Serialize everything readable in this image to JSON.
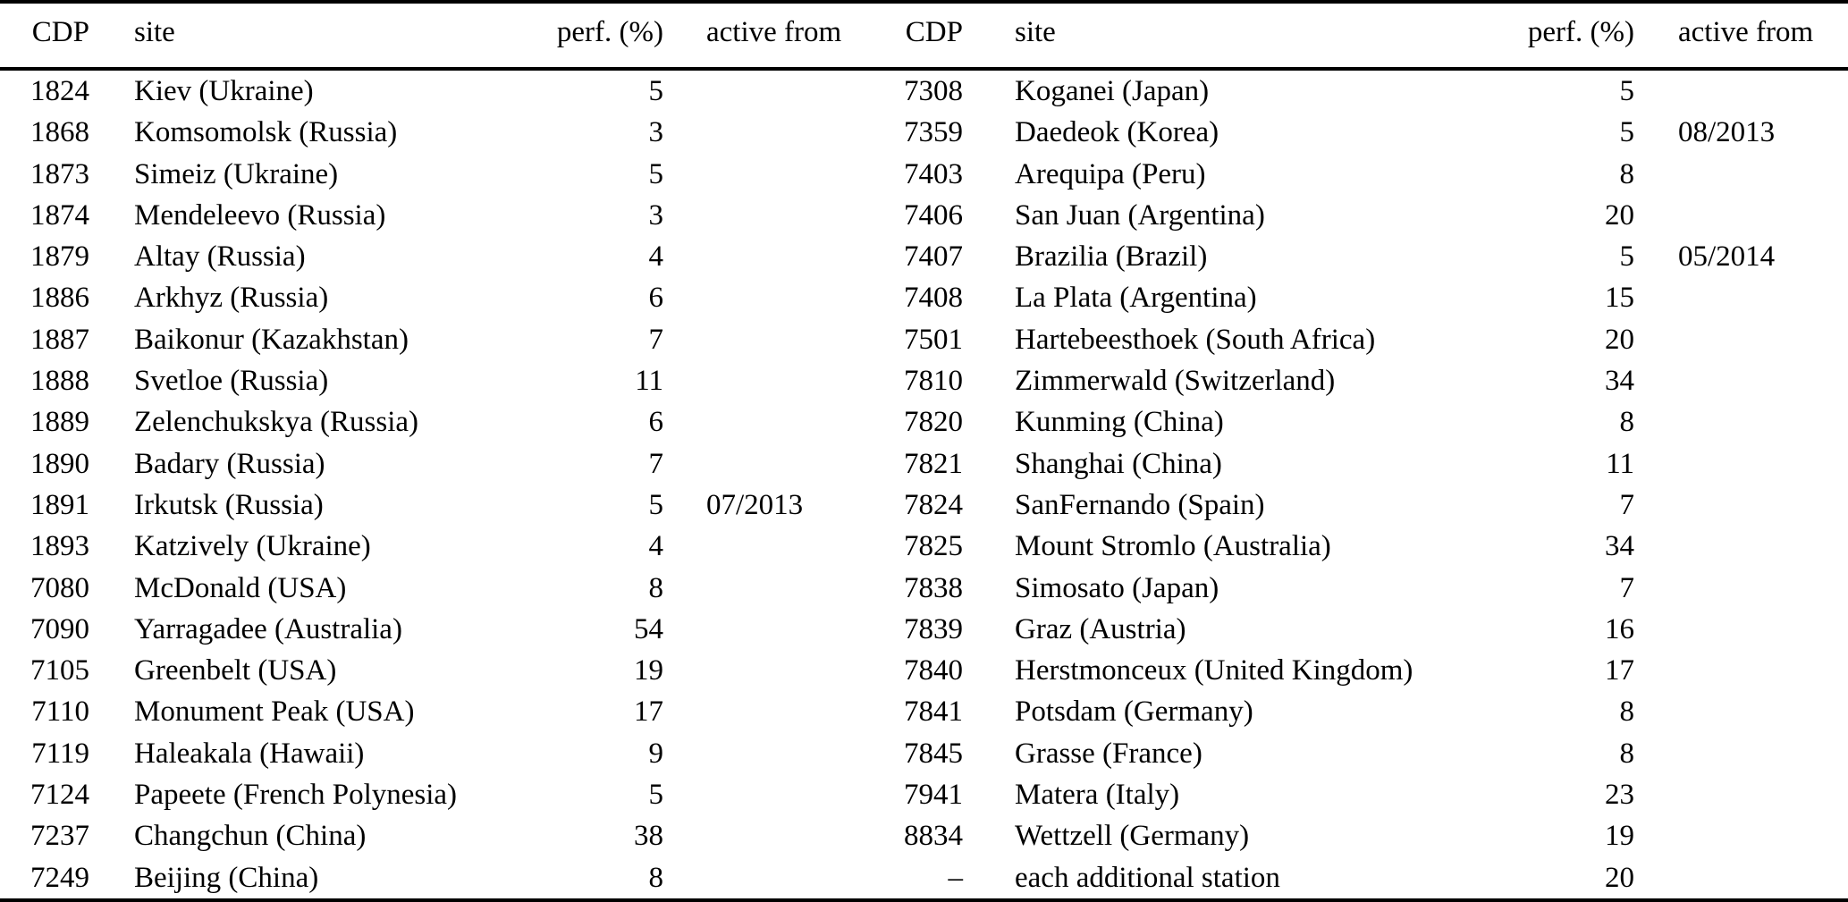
{
  "table": {
    "description": "Station performance table, two half-tables side by side",
    "columns": [
      "CDP",
      "site",
      "perf. (%)",
      "active from"
    ],
    "left_rows": [
      {
        "cdp": "1824",
        "site": "Kiev (Ukraine)",
        "perf": "5",
        "active_from": ""
      },
      {
        "cdp": "1868",
        "site": "Komsomolsk (Russia)",
        "perf": "3",
        "active_from": ""
      },
      {
        "cdp": "1873",
        "site": "Simeiz (Ukraine)",
        "perf": "5",
        "active_from": ""
      },
      {
        "cdp": "1874",
        "site": "Mendeleevo (Russia)",
        "perf": "3",
        "active_from": ""
      },
      {
        "cdp": "1879",
        "site": "Altay (Russia)",
        "perf": "4",
        "active_from": ""
      },
      {
        "cdp": "1886",
        "site": "Arkhyz (Russia)",
        "perf": "6",
        "active_from": ""
      },
      {
        "cdp": "1887",
        "site": "Baikonur (Kazakhstan)",
        "perf": "7",
        "active_from": ""
      },
      {
        "cdp": "1888",
        "site": "Svetloe (Russia)",
        "perf": "11",
        "active_from": ""
      },
      {
        "cdp": "1889",
        "site": "Zelenchukskya (Russia)",
        "perf": "6",
        "active_from": ""
      },
      {
        "cdp": "1890",
        "site": "Badary (Russia)",
        "perf": "7",
        "active_from": ""
      },
      {
        "cdp": "1891",
        "site": "Irkutsk (Russia)",
        "perf": "5",
        "active_from": "07/2013"
      },
      {
        "cdp": "1893",
        "site": "Katzively (Ukraine)",
        "perf": "4",
        "active_from": ""
      },
      {
        "cdp": "7080",
        "site": "McDonald (USA)",
        "perf": "8",
        "active_from": ""
      },
      {
        "cdp": "7090",
        "site": "Yarragadee (Australia)",
        "perf": "54",
        "active_from": ""
      },
      {
        "cdp": "7105",
        "site": "Greenbelt (USA)",
        "perf": "19",
        "active_from": ""
      },
      {
        "cdp": "7110",
        "site": "Monument Peak (USA)",
        "perf": "17",
        "active_from": ""
      },
      {
        "cdp": "7119",
        "site": "Haleakala (Hawaii)",
        "perf": "9",
        "active_from": ""
      },
      {
        "cdp": "7124",
        "site": "Papeete (French Polynesia)",
        "perf": "5",
        "active_from": ""
      },
      {
        "cdp": "7237",
        "site": "Changchun (China)",
        "perf": "38",
        "active_from": ""
      },
      {
        "cdp": "7249",
        "site": "Beijing (China)",
        "perf": "8",
        "active_from": ""
      }
    ],
    "right_rows": [
      {
        "cdp": "7308",
        "site": "Koganei (Japan)",
        "perf": "5",
        "active_from": ""
      },
      {
        "cdp": "7359",
        "site": "Daedeok (Korea)",
        "perf": "5",
        "active_from": "08/2013"
      },
      {
        "cdp": "7403",
        "site": "Arequipa (Peru)",
        "perf": "8",
        "active_from": ""
      },
      {
        "cdp": "7406",
        "site": "San Juan (Argentina)",
        "perf": "20",
        "active_from": ""
      },
      {
        "cdp": "7407",
        "site": "Brazilia (Brazil)",
        "perf": "5",
        "active_from": "05/2014"
      },
      {
        "cdp": "7408",
        "site": "La Plata (Argentina)",
        "perf": "15",
        "active_from": ""
      },
      {
        "cdp": "7501",
        "site": "Hartebeesthoek (South Africa)",
        "perf": "20",
        "active_from": ""
      },
      {
        "cdp": "7810",
        "site": "Zimmerwald (Switzerland)",
        "perf": "34",
        "active_from": ""
      },
      {
        "cdp": "7820",
        "site": "Kunming (China)",
        "perf": "8",
        "active_from": ""
      },
      {
        "cdp": "7821",
        "site": "Shanghai (China)",
        "perf": "11",
        "active_from": ""
      },
      {
        "cdp": "7824",
        "site": "SanFernando (Spain)",
        "perf": "7",
        "active_from": ""
      },
      {
        "cdp": "7825",
        "site": "Mount Stromlo (Australia)",
        "perf": "34",
        "active_from": ""
      },
      {
        "cdp": "7838",
        "site": "Simosato (Japan)",
        "perf": "7",
        "active_from": ""
      },
      {
        "cdp": "7839",
        "site": "Graz (Austria)",
        "perf": "16",
        "active_from": ""
      },
      {
        "cdp": "7840",
        "site": "Herstmonceux (United Kingdom)",
        "perf": "17",
        "active_from": ""
      },
      {
        "cdp": "7841",
        "site": "Potsdam (Germany)",
        "perf": "8",
        "active_from": ""
      },
      {
        "cdp": "7845",
        "site": "Grasse (France)",
        "perf": "8",
        "active_from": ""
      },
      {
        "cdp": "7941",
        "site": "Matera (Italy)",
        "perf": "23",
        "active_from": ""
      },
      {
        "cdp": "8834",
        "site": "Wettzell (Germany)",
        "perf": "19",
        "active_from": ""
      },
      {
        "cdp": "–",
        "site": "each additional station",
        "perf": "20",
        "active_from": ""
      }
    ]
  }
}
